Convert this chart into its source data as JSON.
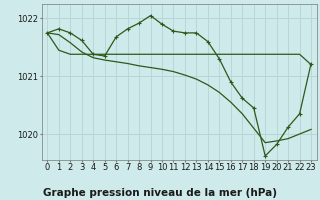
{
  "background_color": "#ceeaea",
  "grid_color": "#b8d8d8",
  "line_color": "#2d5a1b",
  "title": "Graphe pression niveau de la mer (hPa)",
  "xlim": [
    -0.5,
    23.5
  ],
  "ylim": [
    1019.55,
    1022.25
  ],
  "yticks": [
    1020,
    1021,
    1022
  ],
  "xticks": [
    0,
    1,
    2,
    3,
    4,
    5,
    6,
    7,
    8,
    9,
    10,
    11,
    12,
    13,
    14,
    15,
    16,
    17,
    18,
    19,
    20,
    21,
    22,
    23
  ],
  "line1_x": [
    0,
    1,
    2,
    3,
    4,
    5,
    6,
    7,
    8,
    9,
    10,
    11,
    12,
    13,
    14,
    15,
    16,
    17,
    18,
    19,
    20,
    21,
    22,
    23
  ],
  "line1_y": [
    1021.75,
    1021.45,
    1021.38,
    1021.38,
    1021.38,
    1021.38,
    1021.38,
    1021.38,
    1021.38,
    1021.38,
    1021.38,
    1021.38,
    1021.38,
    1021.38,
    1021.38,
    1021.38,
    1021.38,
    1021.38,
    1021.38,
    1021.38,
    1021.38,
    1021.38,
    1021.38,
    1021.2
  ],
  "line2_x": [
    0,
    1,
    2,
    3,
    4,
    5,
    6,
    7,
    8,
    9,
    10,
    11,
    12,
    13,
    14,
    15,
    16,
    17,
    18,
    19,
    20,
    21,
    22,
    23
  ],
  "line2_y": [
    1021.75,
    1021.82,
    1021.75,
    1021.62,
    1021.38,
    1021.35,
    1021.68,
    1021.82,
    1021.92,
    1022.05,
    1021.9,
    1021.78,
    1021.75,
    1021.75,
    1021.6,
    1021.3,
    1020.9,
    1020.62,
    1020.45,
    1019.62,
    1019.82,
    1020.12,
    1020.35,
    1021.22
  ],
  "line3_x": [
    0,
    1,
    2,
    3,
    4,
    5,
    6,
    7,
    8,
    9,
    10,
    11,
    12,
    13,
    14,
    15,
    16,
    17,
    18,
    19,
    20,
    21,
    22,
    23
  ],
  "line3_y": [
    1021.75,
    1021.72,
    1021.58,
    1021.42,
    1021.32,
    1021.28,
    1021.25,
    1021.22,
    1021.18,
    1021.15,
    1021.12,
    1021.08,
    1021.02,
    1020.95,
    1020.85,
    1020.72,
    1020.55,
    1020.35,
    1020.1,
    1019.85,
    1019.88,
    1019.92,
    1020.0,
    1020.08
  ],
  "title_fontsize": 7.5,
  "tick_fontsize": 6
}
